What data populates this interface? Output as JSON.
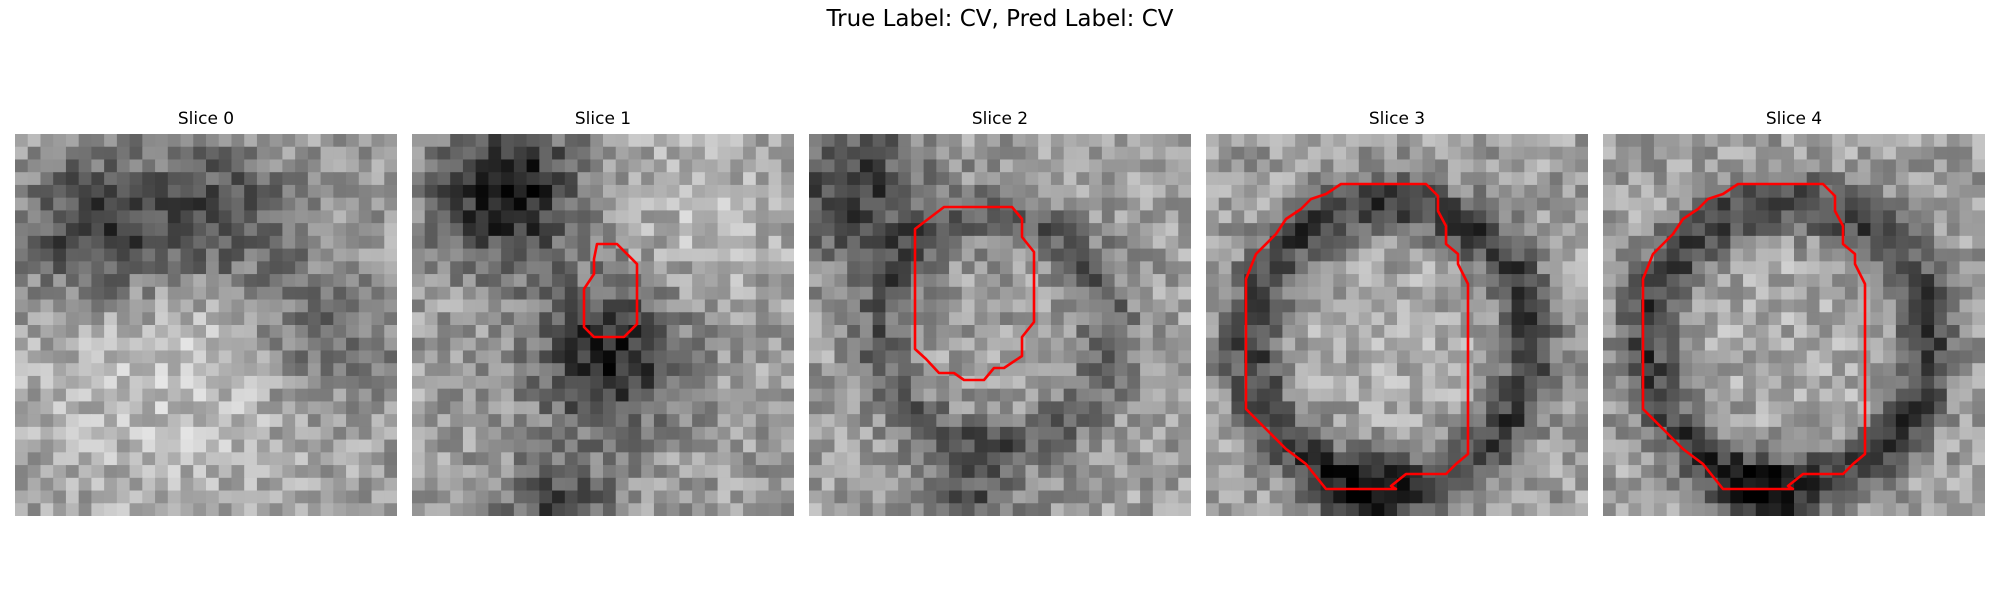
{
  "figure": {
    "title": "True Label: CV, Pred Label: CV"
  },
  "panels": [
    {
      "title": "Slice 0",
      "has_contour": false
    },
    {
      "title": "Slice 1",
      "has_contour": true
    },
    {
      "title": "Slice 2",
      "has_contour": true
    },
    {
      "title": "Slice 3",
      "has_contour": true
    },
    {
      "title": "Slice 4",
      "has_contour": true
    }
  ],
  "colors": {
    "contour": "#ff0000",
    "background": "#ffffff"
  }
}
